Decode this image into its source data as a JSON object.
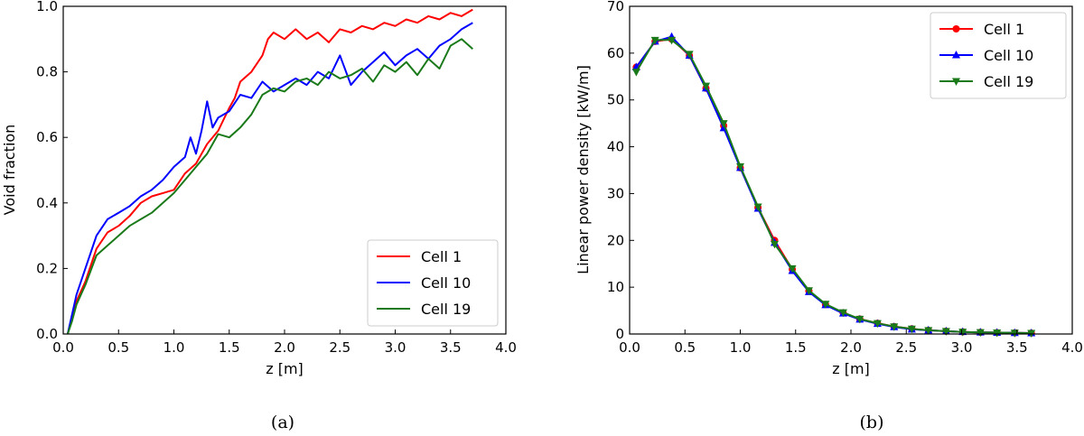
{
  "chart_data": [
    {
      "type": "line",
      "caption": "(a)",
      "xlabel": "z [m]",
      "ylabel": "Void fraction",
      "xlim": [
        0.0,
        4.0
      ],
      "ylim": [
        0.0,
        1.0
      ],
      "xticks": [
        "0.0",
        "0.5",
        "1.0",
        "1.5",
        "2.0",
        "2.5",
        "3.0",
        "3.5",
        "4.0"
      ],
      "yticks": [
        "0.0",
        "0.2",
        "0.4",
        "0.6",
        "0.8",
        "1.0"
      ],
      "legend_position": "lower-right",
      "series": [
        {
          "name": "Cell 1",
          "color": "#ff0000",
          "x": [
            0.04,
            0.08,
            0.12,
            0.2,
            0.3,
            0.4,
            0.5,
            0.6,
            0.7,
            0.8,
            0.9,
            1.0,
            1.1,
            1.2,
            1.3,
            1.4,
            1.5,
            1.55,
            1.6,
            1.7,
            1.8,
            1.85,
            1.9,
            2.0,
            2.1,
            2.2,
            2.3,
            2.4,
            2.5,
            2.6,
            2.7,
            2.8,
            2.9,
            3.0,
            3.1,
            3.2,
            3.3,
            3.4,
            3.5,
            3.6,
            3.7
          ],
          "values": [
            0.0,
            0.05,
            0.1,
            0.16,
            0.26,
            0.31,
            0.33,
            0.36,
            0.4,
            0.42,
            0.43,
            0.44,
            0.49,
            0.52,
            0.58,
            0.62,
            0.69,
            0.72,
            0.77,
            0.8,
            0.85,
            0.9,
            0.92,
            0.9,
            0.93,
            0.9,
            0.92,
            0.89,
            0.93,
            0.92,
            0.94,
            0.93,
            0.95,
            0.94,
            0.96,
            0.95,
            0.97,
            0.96,
            0.98,
            0.97,
            0.99
          ]
        },
        {
          "name": "Cell 10",
          "color": "#0000ff",
          "x": [
            0.04,
            0.08,
            0.12,
            0.2,
            0.3,
            0.4,
            0.5,
            0.6,
            0.7,
            0.8,
            0.9,
            1.0,
            1.1,
            1.15,
            1.2,
            1.25,
            1.3,
            1.35,
            1.4,
            1.5,
            1.6,
            1.7,
            1.8,
            1.9,
            2.0,
            2.1,
            2.2,
            2.3,
            2.4,
            2.5,
            2.6,
            2.7,
            2.8,
            2.9,
            3.0,
            3.1,
            3.2,
            3.3,
            3.4,
            3.5,
            3.6,
            3.7
          ],
          "values": [
            0.0,
            0.06,
            0.12,
            0.2,
            0.3,
            0.35,
            0.37,
            0.39,
            0.42,
            0.44,
            0.47,
            0.51,
            0.54,
            0.6,
            0.55,
            0.62,
            0.71,
            0.63,
            0.66,
            0.68,
            0.73,
            0.72,
            0.77,
            0.74,
            0.76,
            0.78,
            0.76,
            0.8,
            0.78,
            0.85,
            0.76,
            0.8,
            0.83,
            0.86,
            0.82,
            0.85,
            0.87,
            0.84,
            0.88,
            0.9,
            0.93,
            0.95
          ]
        },
        {
          "name": "Cell 19",
          "color": "#1a7a1a",
          "x": [
            0.04,
            0.08,
            0.12,
            0.2,
            0.3,
            0.4,
            0.5,
            0.6,
            0.7,
            0.8,
            0.9,
            1.0,
            1.1,
            1.2,
            1.3,
            1.4,
            1.5,
            1.6,
            1.7,
            1.8,
            1.9,
            2.0,
            2.1,
            2.2,
            2.3,
            2.4,
            2.5,
            2.6,
            2.7,
            2.8,
            2.9,
            3.0,
            3.1,
            3.2,
            3.3,
            3.4,
            3.5,
            3.6,
            3.7
          ],
          "values": [
            0.0,
            0.04,
            0.09,
            0.15,
            0.24,
            0.27,
            0.3,
            0.33,
            0.35,
            0.37,
            0.4,
            0.43,
            0.47,
            0.51,
            0.55,
            0.61,
            0.6,
            0.63,
            0.67,
            0.73,
            0.75,
            0.74,
            0.77,
            0.78,
            0.76,
            0.8,
            0.78,
            0.79,
            0.81,
            0.77,
            0.82,
            0.8,
            0.83,
            0.79,
            0.84,
            0.81,
            0.88,
            0.9,
            0.87
          ]
        }
      ]
    },
    {
      "type": "line",
      "caption": "(b)",
      "xlabel": "z [m]",
      "ylabel": "Linear power density [kW/m]",
      "xlim": [
        0.0,
        4.0
      ],
      "ylim": [
        0,
        70
      ],
      "xticks": [
        "0.0",
        "0.5",
        "1.0",
        "1.5",
        "2.0",
        "2.5",
        "3.0",
        "3.5",
        "4.0"
      ],
      "yticks": [
        "0",
        "10",
        "20",
        "30",
        "40",
        "50",
        "60",
        "70"
      ],
      "legend_position": "top-right",
      "x": [
        0.06,
        0.23,
        0.38,
        0.54,
        0.69,
        0.85,
        1.0,
        1.16,
        1.31,
        1.47,
        1.62,
        1.77,
        1.93,
        2.08,
        2.24,
        2.39,
        2.55,
        2.7,
        2.86,
        3.01,
        3.17,
        3.32,
        3.48,
        3.63
      ],
      "series": [
        {
          "name": "Cell 1",
          "color": "#ff0000",
          "marker": "circle",
          "values": [
            57.0,
            62.5,
            63.0,
            59.5,
            52.5,
            44.5,
            35.5,
            27.0,
            20.0,
            13.8,
            9.2,
            6.3,
            4.5,
            3.2,
            2.3,
            1.6,
            1.1,
            0.8,
            0.6,
            0.45,
            0.35,
            0.3,
            0.25,
            0.2
          ]
        },
        {
          "name": "Cell 10",
          "color": "#0000ff",
          "marker": "triangle-up",
          "values": [
            57.0,
            62.5,
            63.5,
            59.5,
            52.5,
            44.0,
            35.5,
            26.8,
            19.5,
            13.5,
            9.0,
            6.2,
            4.4,
            3.1,
            2.2,
            1.5,
            1.0,
            0.8,
            0.6,
            0.45,
            0.35,
            0.3,
            0.25,
            0.2
          ]
        },
        {
          "name": "Cell 19",
          "color": "#1a7a1a",
          "marker": "triangle-down",
          "values": [
            56.0,
            62.8,
            62.8,
            59.8,
            53.0,
            45.0,
            35.8,
            27.2,
            19.2,
            14.0,
            9.3,
            6.4,
            4.6,
            3.2,
            2.3,
            1.6,
            1.1,
            0.8,
            0.6,
            0.45,
            0.35,
            0.3,
            0.25,
            0.2
          ]
        }
      ]
    }
  ]
}
